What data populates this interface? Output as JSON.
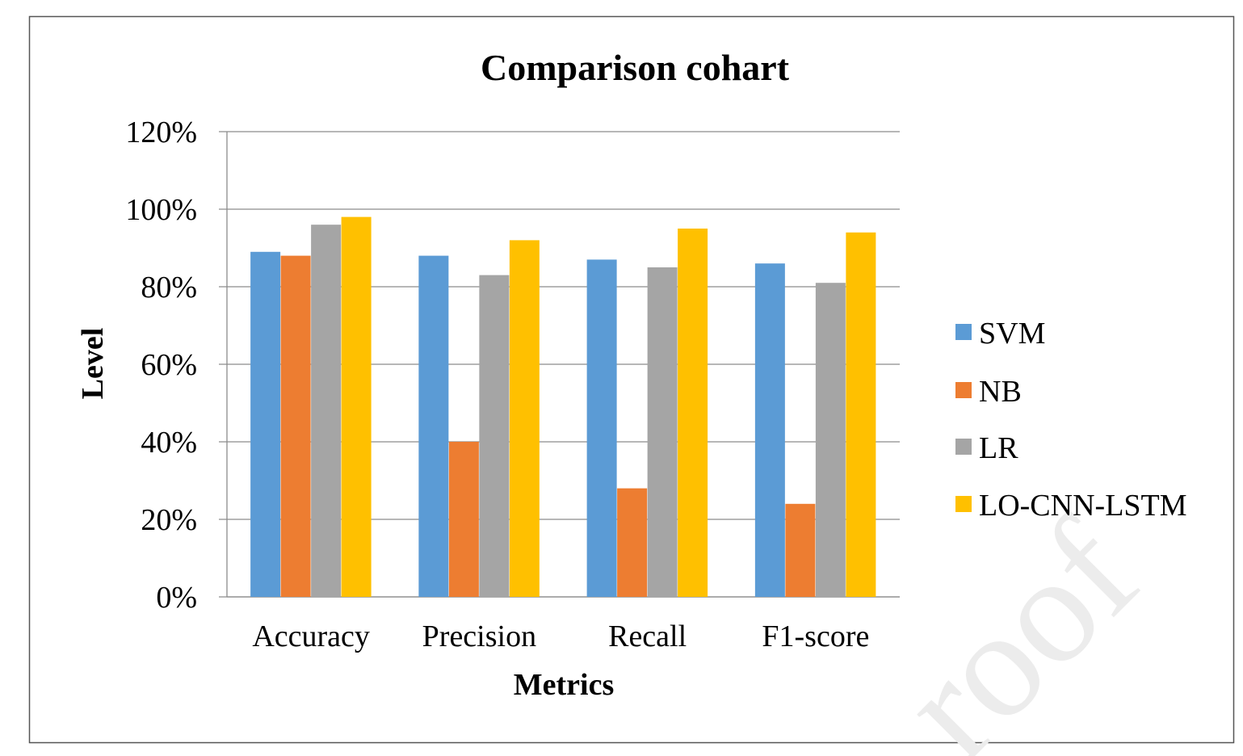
{
  "chart_data": {
    "type": "bar",
    "title": "Comparison cohart",
    "xlabel": "Metrics",
    "ylabel": "Level",
    "categories": [
      "Accuracy",
      "Precision",
      "Recall",
      "F1-score"
    ],
    "series": [
      {
        "name": "SVM",
        "color": "#5B9BD5",
        "values": [
          89,
          88,
          87,
          86
        ]
      },
      {
        "name": "NB",
        "color": "#ED7D31",
        "values": [
          88,
          40,
          28,
          24
        ]
      },
      {
        "name": "LR",
        "color": "#A5A5A5",
        "values": [
          96,
          83,
          85,
          81
        ]
      },
      {
        "name": "LO-CNN-LSTM",
        "color": "#FFC000",
        "values": [
          98,
          92,
          95,
          94
        ]
      }
    ],
    "ylim": [
      0,
      120
    ],
    "yticks": [
      "0%",
      "20%",
      "40%",
      "60%",
      "80%",
      "100%",
      "120%"
    ],
    "grid": true,
    "legend_position": "right"
  },
  "watermark": "roof"
}
